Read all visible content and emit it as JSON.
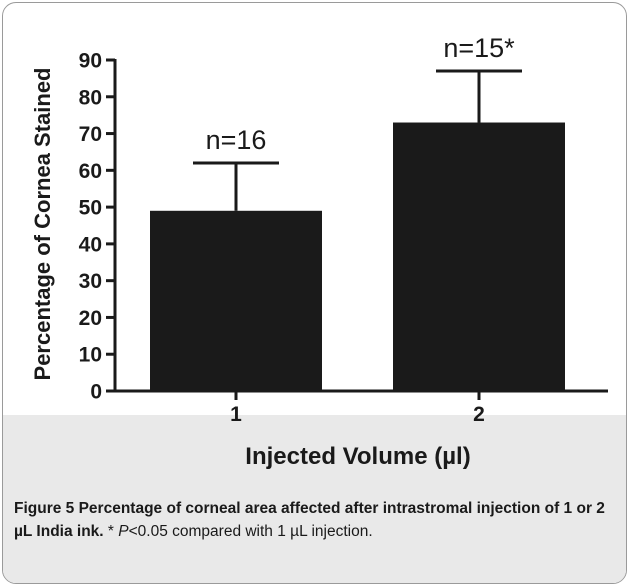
{
  "chart_data": {
    "type": "bar",
    "categories": [
      "1",
      "2"
    ],
    "values": [
      49,
      73
    ],
    "error_upper": [
      62,
      87
    ],
    "bar_labels": [
      "n=16",
      "n=15*"
    ],
    "xlabel": "Injected Volume (µl)",
    "ylabel": "Percentage of Cornea Stained",
    "ylim": [
      0,
      90
    ],
    "yticks": [
      "0",
      "10",
      "20",
      "30",
      "40",
      "50",
      "60",
      "70",
      "80",
      "90"
    ],
    "grid": false,
    "bar_color": "#1a1a1a"
  },
  "caption": {
    "bold": "Figure 5 Percentage of corneal area affected after intrastromal injection of 1 or 2 µL India ink.",
    "star": " * ",
    "p_italic": "P",
    "rest": "<0.05 compared with 1 µL injection."
  }
}
